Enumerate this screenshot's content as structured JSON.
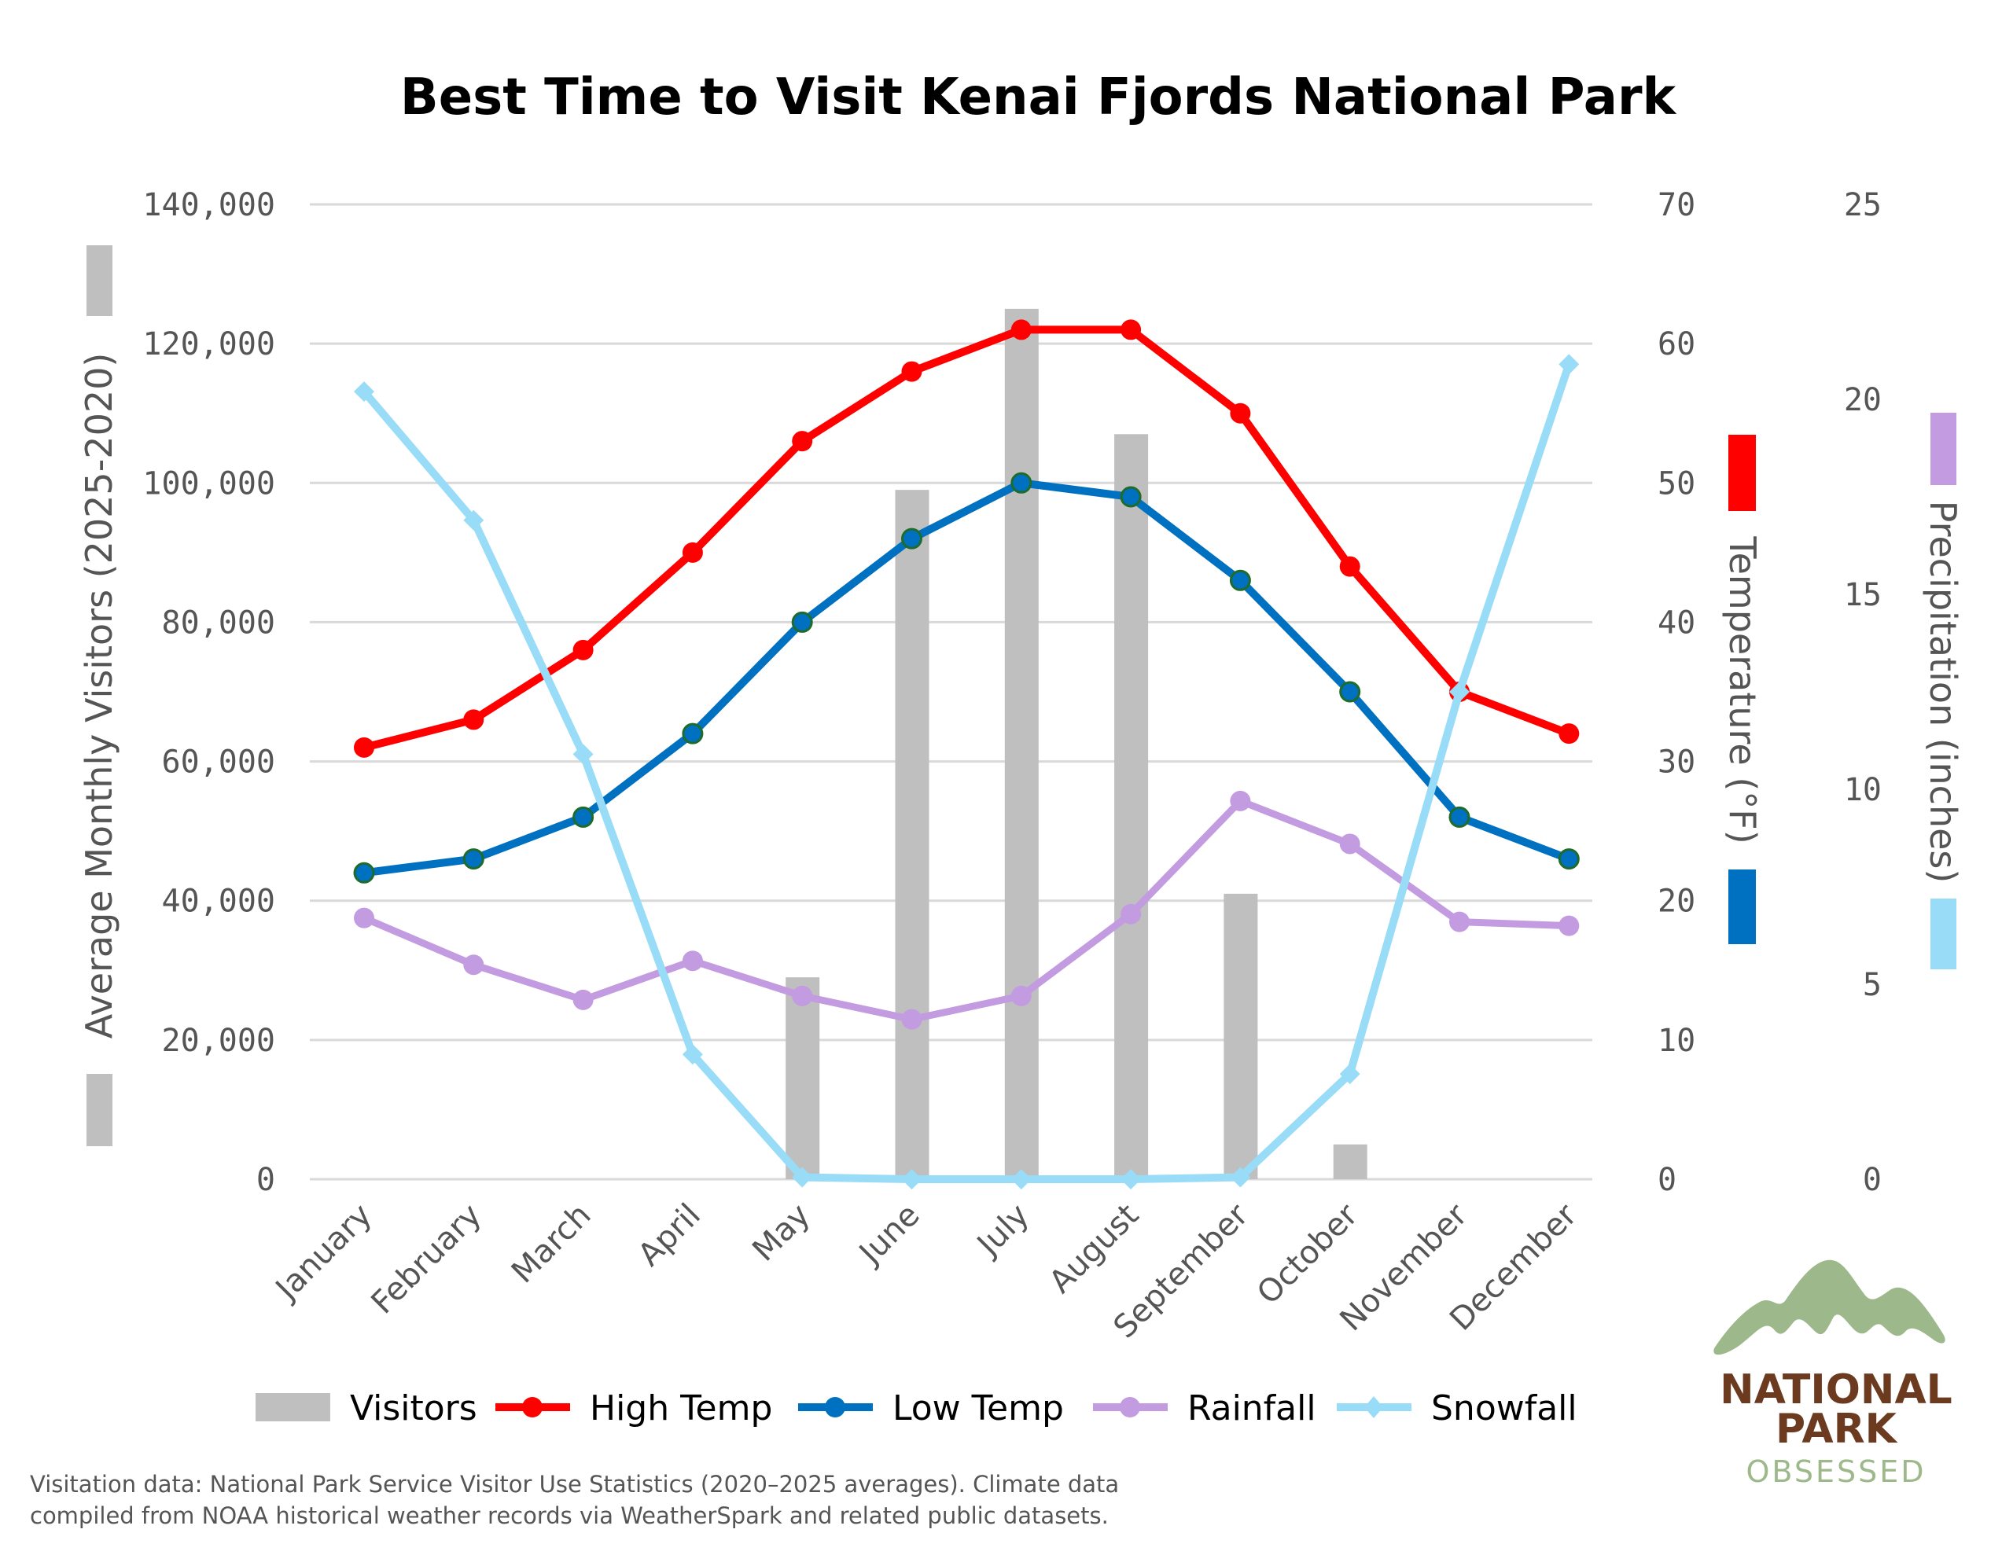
{
  "title": "Best Time to Visit Kenai Fjords National Park",
  "footer": {
    "line1": "Visitation data: National Park Service Visitor Use Statistics (2020–2025 averages). Climate data",
    "line2": "compiled from NOAA historical weather records via WeatherSpark and related public datasets."
  },
  "logo": {
    "line1": "NATIONAL",
    "line2": "PARK",
    "line3": "OBSESSED",
    "colors": {
      "mountain": "#9db88a",
      "text": "#6b3a1f",
      "sub": "#9db88a"
    }
  },
  "axes": {
    "left_title": "Average Monthly Visitors (2025-2020)",
    "right_title": "Temperature (°F)",
    "far_right_title": "Precipitation (inches)",
    "left_ticks": [
      "0",
      "20,000",
      "40,000",
      "60,000",
      "80,000",
      "100,000",
      "120,000",
      "140,000"
    ],
    "right_ticks": [
      "0",
      "10",
      "20",
      "30",
      "40",
      "50",
      "60",
      "70"
    ],
    "far_right_ticks": [
      "0",
      "5",
      "10",
      "15",
      "20",
      "25"
    ]
  },
  "legend": [
    {
      "label": "Visitors",
      "type": "bar",
      "color": "#bfbfbf"
    },
    {
      "label": "High Temp",
      "type": "line",
      "color": "#ff0000"
    },
    {
      "label": "Low Temp",
      "type": "line",
      "color": "#0070c0"
    },
    {
      "label": "Rainfall",
      "type": "line",
      "color": "#c29be0"
    },
    {
      "label": "Snowfall",
      "type": "line-diamond",
      "color": "#99dcf7"
    }
  ],
  "chart_data": {
    "type": "bar+line",
    "title": "Best Time to Visit Kenai Fjords National Park",
    "categories": [
      "January",
      "February",
      "March",
      "April",
      "May",
      "June",
      "July",
      "August",
      "September",
      "October",
      "November",
      "December"
    ],
    "series": [
      {
        "name": "Visitors",
        "type": "bar",
        "axis": "left",
        "color": "#bfbfbf",
        "values": [
          0,
          0,
          0,
          0,
          29000,
          99000,
          125000,
          107000,
          41000,
          5000,
          0,
          0
        ]
      },
      {
        "name": "High Temp",
        "type": "line",
        "axis": "right",
        "color": "#ff0000",
        "values": [
          31,
          33,
          38,
          45,
          53,
          58,
          61,
          61,
          55,
          44,
          35,
          32
        ]
      },
      {
        "name": "Low Temp",
        "type": "line",
        "axis": "right",
        "color": "#0070c0",
        "values": [
          22,
          23,
          26,
          32,
          40,
          46,
          50,
          49,
          43,
          35,
          26,
          23
        ]
      },
      {
        "name": "Rainfall",
        "type": "line",
        "axis": "far_right",
        "color": "#c29be0",
        "values": [
          6.7,
          5.5,
          4.6,
          5.6,
          4.7,
          4.1,
          4.7,
          6.8,
          9.7,
          8.6,
          6.6,
          6.5
        ]
      },
      {
        "name": "Snowfall",
        "type": "line",
        "axis": "far_right",
        "color": "#99dcf7",
        "values": [
          20.2,
          16.9,
          10.9,
          3.2,
          0.05,
          0,
          0,
          0,
          0.05,
          2.7,
          12.5,
          20.9
        ]
      }
    ],
    "xlabel": "",
    "ylabel": "Average Monthly Visitors (2025-2020)",
    "y2label": "Temperature (°F)",
    "y3label": "Precipitation (inches)",
    "ylim": [
      0,
      140000
    ],
    "y2lim": [
      0,
      70
    ],
    "y3lim": [
      0,
      25
    ],
    "grid": true,
    "legend_position": "bottom"
  }
}
